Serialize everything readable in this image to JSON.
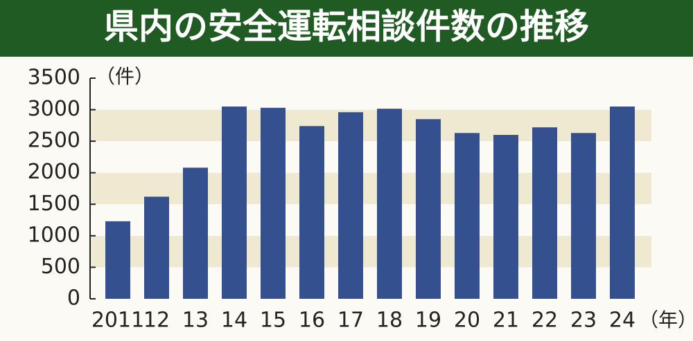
{
  "chart_data": {
    "type": "bar",
    "title": "県内の安全運転相談件数の推移",
    "y_unit": "（件）",
    "x_unit": "（年）",
    "categories": [
      "2011",
      "12",
      "13",
      "14",
      "15",
      "16",
      "17",
      "18",
      "19",
      "20",
      "21",
      "22",
      "23",
      "24"
    ],
    "values": [
      1230,
      1620,
      2080,
      3050,
      3030,
      2740,
      2960,
      3015,
      2850,
      2630,
      2600,
      2720,
      2630,
      3050
    ],
    "color": "#34508f",
    "ylim": [
      0,
      3500
    ],
    "yticks": [
      0,
      500,
      1000,
      1500,
      2000,
      2500,
      3000,
      3500
    ],
    "grid": true
  }
}
